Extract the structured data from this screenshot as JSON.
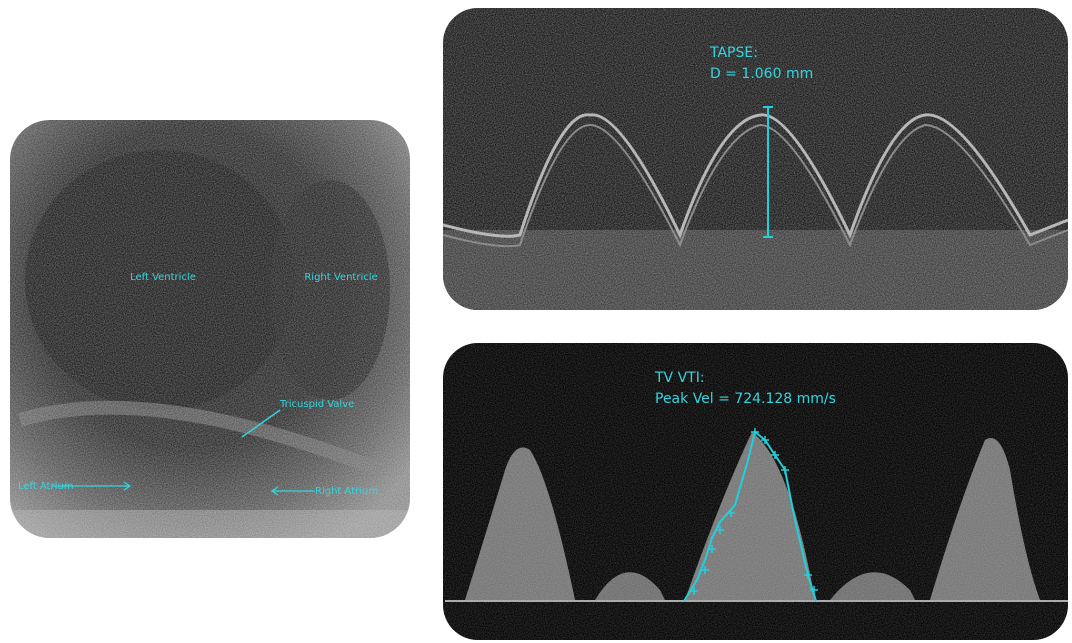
{
  "echo_view": {
    "left_ventricle": "Left Ventricle",
    "right_ventricle": "Right Ventricle",
    "tricuspid_valve": "Tricuspid Valve",
    "left_atrium": "Left Atrium",
    "right_atrium": "Right Atrium"
  },
  "tapse": {
    "title": "TAPSE:",
    "measurement": "D = 1.060 mm"
  },
  "tv_vti": {
    "title": "TV VTI:",
    "measurement": "Peak Vel = 724.128 mm/s"
  }
}
